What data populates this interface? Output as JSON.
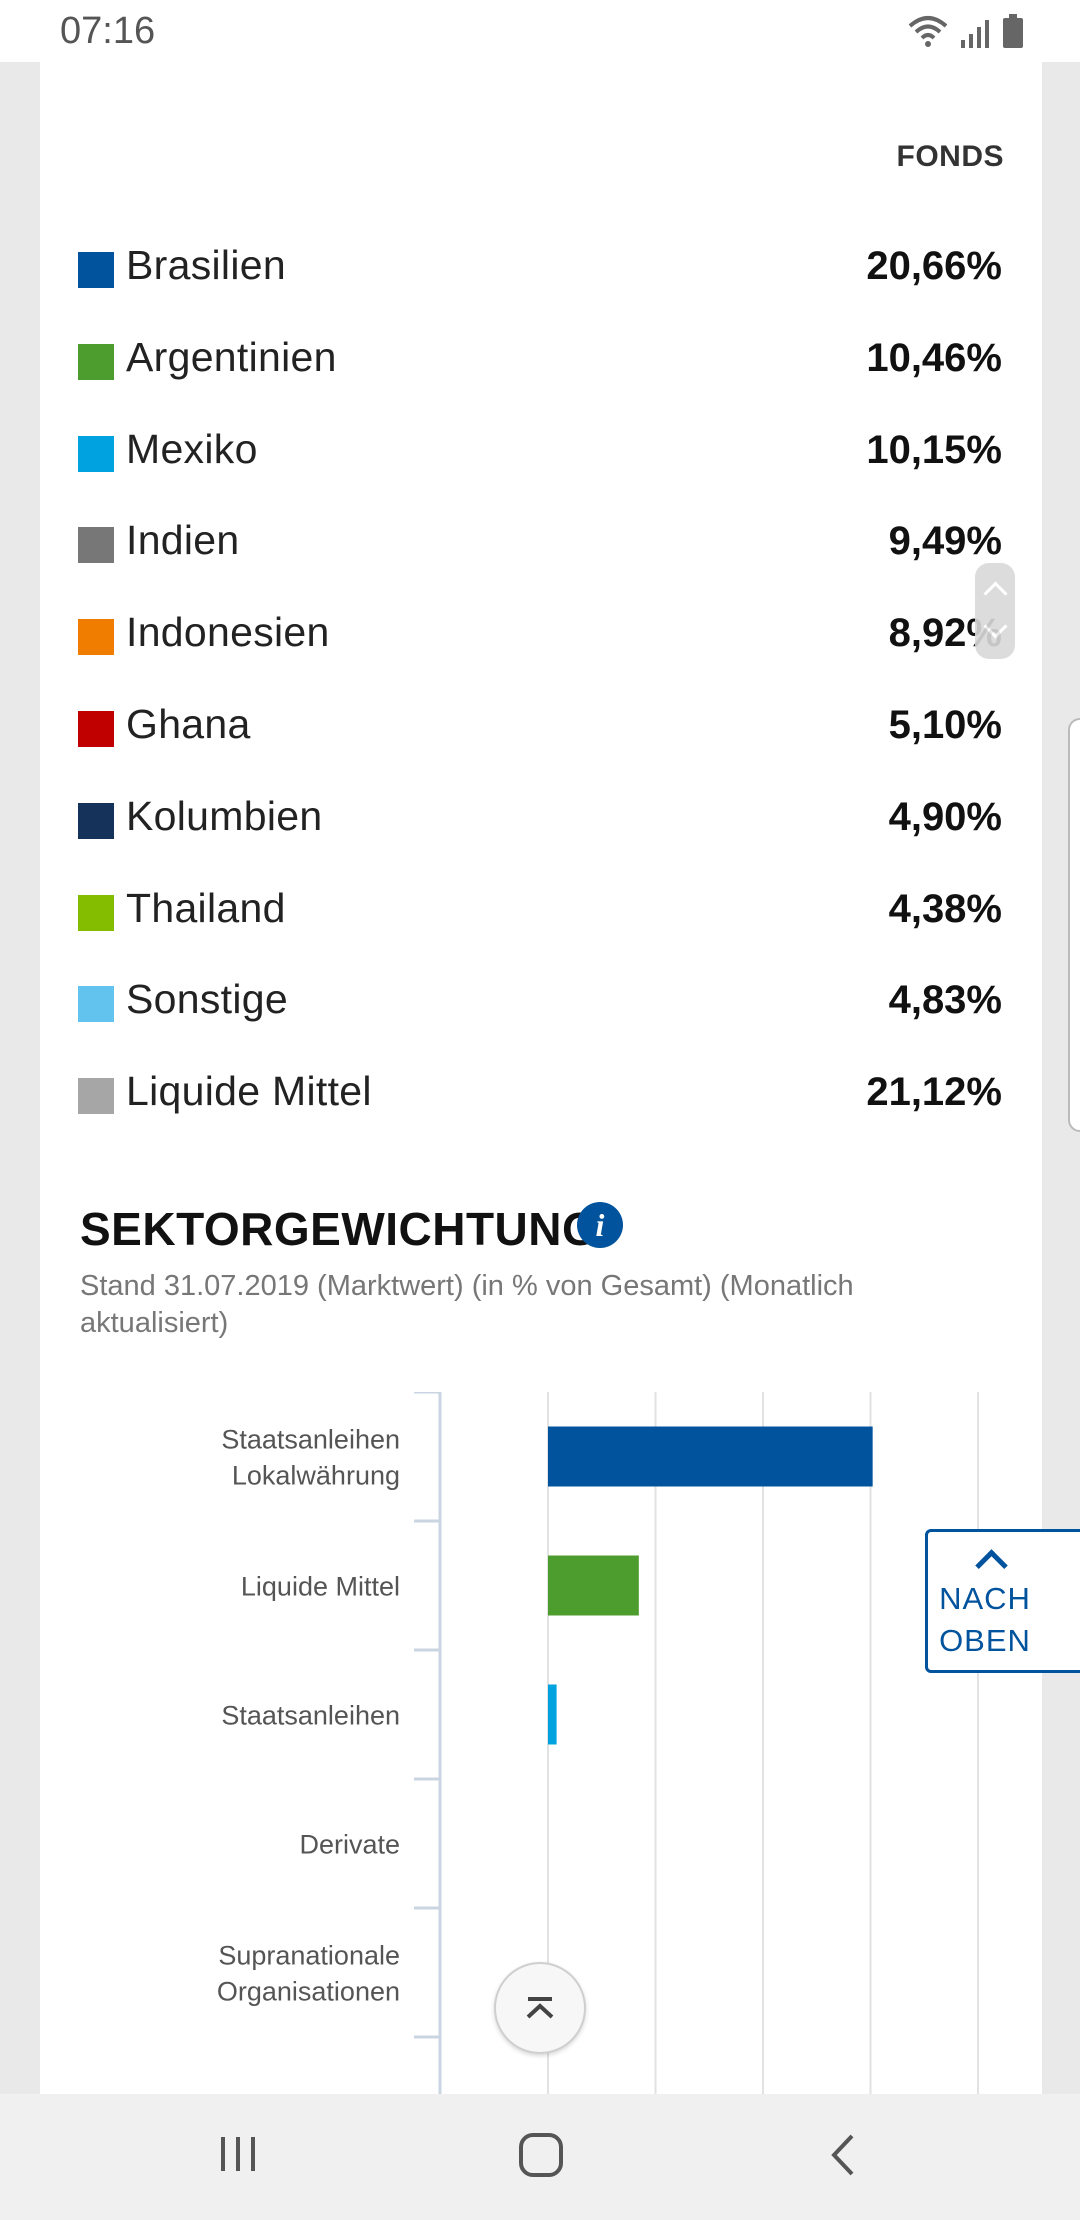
{
  "status_bar": {
    "time": "07:16",
    "icons": [
      "wifi-icon",
      "signal-icon",
      "battery-icon"
    ]
  },
  "country_table": {
    "column_header": "FONDS",
    "rows": [
      {
        "label": "Brasilien",
        "value": "20,66%",
        "color": "#00539c"
      },
      {
        "label": "Argentinien",
        "value": "10,46%",
        "color": "#4c9c2e"
      },
      {
        "label": "Mexiko",
        "value": "10,15%",
        "color": "#00a3e0"
      },
      {
        "label": "Indien",
        "value": "9,49%",
        "color": "#777777"
      },
      {
        "label": "Indonesien",
        "value": "8,92%",
        "color": "#f07d00"
      },
      {
        "label": "Ghana",
        "value": "5,10%",
        "color": "#c00000"
      },
      {
        "label": "Kolumbien",
        "value": "4,90%",
        "color": "#14325a"
      },
      {
        "label": "Thailand",
        "value": "4,38%",
        "color": "#84bd00"
      },
      {
        "label": "Sonstige",
        "value": "4,83%",
        "color": "#62c3ee"
      },
      {
        "label": "Liquide Mittel",
        "value": "21,12%",
        "color": "#a6a6a6"
      }
    ]
  },
  "sector_section": {
    "title": "SEKTORGEWICHTUNG",
    "subtitle": "Stand 31.07.2019 (Marktwert) (in % von Gesamt) (Monatlich aktualisiert)",
    "info_icon": "info-icon"
  },
  "chart_data": {
    "type": "bar",
    "orientation": "horizontal",
    "categories": [
      "Staatsanleihen Lokalwährung",
      "Liquide Mittel",
      "Staatsanleihen",
      "Derivate",
      "Supranationale Organisationen"
    ],
    "category_lines": [
      [
        "Staatsanleihen",
        "Lokalwährung"
      ],
      [
        "Liquide Mittel"
      ],
      [
        "Staatsanleihen"
      ],
      [
        "Derivate"
      ],
      [
        "Supranationale",
        "Organisationen"
      ]
    ],
    "values": [
      75.5,
      21.12,
      2.0,
      0.0,
      0.0
    ],
    "colors": [
      "#00539c",
      "#4c9c2e",
      "#00a3e0",
      "#14325a",
      "#777777"
    ],
    "xlim": [
      -25,
      100
    ],
    "xgrid": [
      0,
      25,
      50,
      75,
      100
    ],
    "grid": true,
    "title": "",
    "xlabel": "",
    "ylabel": ""
  },
  "buttons": {
    "nach_oben_line1": "NACH",
    "nach_oben_line2": "OBEN"
  },
  "nav_bar": {
    "icons": [
      "recent-apps-icon",
      "home-icon",
      "back-icon"
    ]
  }
}
